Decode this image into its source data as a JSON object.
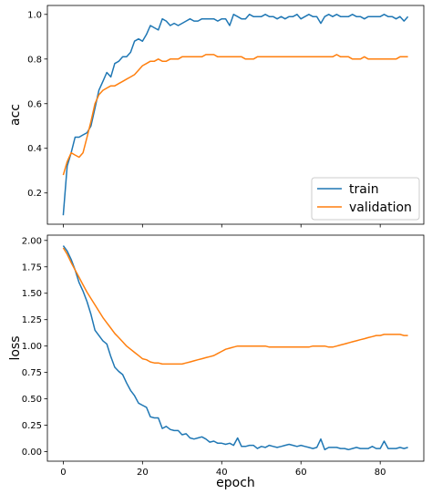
{
  "chart_data": [
    {
      "type": "line",
      "ylabel": "acc",
      "xlabel": "",
      "xlim": [
        -4,
        91
      ],
      "ylim": [
        0.06,
        1.04
      ],
      "xticks": [
        0,
        20,
        40,
        60,
        80
      ],
      "yticks": [
        0.2,
        0.4,
        0.6,
        0.8,
        1.0
      ],
      "ytick_format": 1,
      "legend": {
        "placement": "lower-right",
        "entries": [
          "train",
          "validation"
        ]
      },
      "grid": false,
      "series": [
        {
          "name": "train",
          "color": "#1f77b4",
          "x": [
            0,
            1,
            2,
            3,
            4,
            5,
            6,
            7,
            8,
            9,
            10,
            11,
            12,
            13,
            14,
            15,
            16,
            17,
            18,
            19,
            20,
            21,
            22,
            23,
            24,
            25,
            26,
            27,
            28,
            29,
            30,
            31,
            32,
            33,
            34,
            35,
            36,
            37,
            38,
            39,
            40,
            41,
            42,
            43,
            44,
            45,
            46,
            47,
            48,
            49,
            50,
            51,
            52,
            53,
            54,
            55,
            56,
            57,
            58,
            59,
            60,
            61,
            62,
            63,
            64,
            65,
            66,
            67,
            68,
            69,
            70,
            71,
            72,
            73,
            74,
            75,
            76,
            77,
            78,
            79,
            80,
            81,
            82,
            83,
            84,
            85,
            86,
            87
          ],
          "values": [
            0.1,
            0.32,
            0.38,
            0.45,
            0.45,
            0.46,
            0.47,
            0.5,
            0.58,
            0.66,
            0.7,
            0.74,
            0.72,
            0.78,
            0.79,
            0.81,
            0.81,
            0.83,
            0.88,
            0.89,
            0.88,
            0.91,
            0.95,
            0.94,
            0.93,
            0.98,
            0.97,
            0.95,
            0.96,
            0.95,
            0.96,
            0.97,
            0.98,
            0.97,
            0.97,
            0.98,
            0.98,
            0.98,
            0.98,
            0.97,
            0.98,
            0.98,
            0.95,
            1.0,
            0.99,
            0.98,
            0.98,
            1.0,
            0.99,
            0.99,
            0.99,
            1.0,
            0.99,
            0.99,
            0.98,
            0.99,
            0.98,
            0.99,
            0.99,
            1.0,
            0.98,
            0.99,
            1.0,
            0.99,
            0.99,
            0.96,
            0.99,
            1.0,
            0.99,
            1.0,
            0.99,
            0.99,
            0.99,
            1.0,
            0.99,
            0.99,
            0.98,
            0.99,
            0.99,
            0.99,
            0.99,
            1.0,
            0.99,
            0.99,
            0.98,
            0.99,
            0.97,
            0.99
          ]
        },
        {
          "name": "validation",
          "color": "#ff7f0e",
          "x": [
            0,
            1,
            2,
            3,
            4,
            5,
            6,
            7,
            8,
            9,
            10,
            11,
            12,
            13,
            14,
            15,
            16,
            17,
            18,
            19,
            20,
            21,
            22,
            23,
            24,
            25,
            26,
            27,
            28,
            29,
            30,
            31,
            32,
            33,
            34,
            35,
            36,
            37,
            38,
            39,
            40,
            41,
            42,
            43,
            44,
            45,
            46,
            47,
            48,
            49,
            50,
            51,
            52,
            53,
            54,
            55,
            56,
            57,
            58,
            59,
            60,
            61,
            62,
            63,
            64,
            65,
            66,
            67,
            68,
            69,
            70,
            71,
            72,
            73,
            74,
            75,
            76,
            77,
            78,
            79,
            80,
            81,
            82,
            83,
            84,
            85,
            86,
            87
          ],
          "values": [
            0.28,
            0.34,
            0.38,
            0.37,
            0.36,
            0.38,
            0.45,
            0.52,
            0.6,
            0.64,
            0.66,
            0.67,
            0.68,
            0.68,
            0.69,
            0.7,
            0.71,
            0.72,
            0.73,
            0.75,
            0.77,
            0.78,
            0.79,
            0.79,
            0.8,
            0.79,
            0.79,
            0.8,
            0.8,
            0.8,
            0.81,
            0.81,
            0.81,
            0.81,
            0.81,
            0.81,
            0.82,
            0.82,
            0.82,
            0.81,
            0.81,
            0.81,
            0.81,
            0.81,
            0.81,
            0.81,
            0.8,
            0.8,
            0.8,
            0.81,
            0.81,
            0.81,
            0.81,
            0.81,
            0.81,
            0.81,
            0.81,
            0.81,
            0.81,
            0.81,
            0.81,
            0.81,
            0.81,
            0.81,
            0.81,
            0.81,
            0.81,
            0.81,
            0.81,
            0.82,
            0.81,
            0.81,
            0.81,
            0.8,
            0.8,
            0.8,
            0.81,
            0.8,
            0.8,
            0.8,
            0.8,
            0.8,
            0.8,
            0.8,
            0.8,
            0.81,
            0.81,
            0.81
          ]
        }
      ]
    },
    {
      "type": "line",
      "ylabel": "loss",
      "xlabel": "epoch",
      "xlim": [
        -4,
        91
      ],
      "ylim": [
        -0.09,
        2.05
      ],
      "xticks": [
        0,
        20,
        40,
        60,
        80
      ],
      "yticks": [
        0.0,
        0.25,
        0.5,
        0.75,
        1.0,
        1.25,
        1.5,
        1.75,
        2.0
      ],
      "ytick_format": 2,
      "grid": false,
      "series": [
        {
          "name": "train",
          "color": "#1f77b4",
          "x": [
            0,
            1,
            2,
            3,
            4,
            5,
            6,
            7,
            8,
            9,
            10,
            11,
            12,
            13,
            14,
            15,
            16,
            17,
            18,
            19,
            20,
            21,
            22,
            23,
            24,
            25,
            26,
            27,
            28,
            29,
            30,
            31,
            32,
            33,
            34,
            35,
            36,
            37,
            38,
            39,
            40,
            41,
            42,
            43,
            44,
            45,
            46,
            47,
            48,
            49,
            50,
            51,
            52,
            53,
            54,
            55,
            56,
            57,
            58,
            59,
            60,
            61,
            62,
            63,
            64,
            65,
            66,
            67,
            68,
            69,
            70,
            71,
            72,
            73,
            74,
            75,
            76,
            77,
            78,
            79,
            80,
            81,
            82,
            83,
            84,
            85,
            86,
            87
          ],
          "values": [
            1.95,
            1.9,
            1.82,
            1.72,
            1.6,
            1.52,
            1.42,
            1.3,
            1.15,
            1.1,
            1.05,
            1.02,
            0.9,
            0.8,
            0.76,
            0.73,
            0.65,
            0.58,
            0.53,
            0.46,
            0.44,
            0.42,
            0.33,
            0.32,
            0.32,
            0.22,
            0.24,
            0.21,
            0.2,
            0.2,
            0.16,
            0.17,
            0.13,
            0.12,
            0.13,
            0.14,
            0.12,
            0.09,
            0.1,
            0.08,
            0.08,
            0.07,
            0.08,
            0.06,
            0.13,
            0.05,
            0.05,
            0.06,
            0.06,
            0.03,
            0.05,
            0.04,
            0.06,
            0.05,
            0.04,
            0.05,
            0.06,
            0.07,
            0.06,
            0.05,
            0.06,
            0.05,
            0.04,
            0.03,
            0.04,
            0.12,
            0.02,
            0.04,
            0.04,
            0.04,
            0.03,
            0.03,
            0.02,
            0.03,
            0.04,
            0.03,
            0.03,
            0.03,
            0.05,
            0.03,
            0.03,
            0.1,
            0.03,
            0.03,
            0.03,
            0.04,
            0.03,
            0.04
          ]
        },
        {
          "name": "validation",
          "color": "#ff7f0e",
          "x": [
            0,
            1,
            2,
            3,
            4,
            5,
            6,
            7,
            8,
            9,
            10,
            11,
            12,
            13,
            14,
            15,
            16,
            17,
            18,
            19,
            20,
            21,
            22,
            23,
            24,
            25,
            26,
            27,
            28,
            29,
            30,
            31,
            32,
            33,
            34,
            35,
            36,
            37,
            38,
            39,
            40,
            41,
            42,
            43,
            44,
            45,
            46,
            47,
            48,
            49,
            50,
            51,
            52,
            53,
            54,
            55,
            56,
            57,
            58,
            59,
            60,
            61,
            62,
            63,
            64,
            65,
            66,
            67,
            68,
            69,
            70,
            71,
            72,
            73,
            74,
            75,
            76,
            77,
            78,
            79,
            80,
            81,
            82,
            83,
            84,
            85,
            86,
            87
          ],
          "values": [
            1.93,
            1.87,
            1.79,
            1.72,
            1.65,
            1.58,
            1.51,
            1.45,
            1.39,
            1.33,
            1.27,
            1.22,
            1.17,
            1.12,
            1.08,
            1.04,
            1.0,
            0.97,
            0.94,
            0.91,
            0.88,
            0.87,
            0.85,
            0.84,
            0.84,
            0.83,
            0.83,
            0.83,
            0.83,
            0.83,
            0.83,
            0.84,
            0.85,
            0.86,
            0.87,
            0.88,
            0.89,
            0.9,
            0.91,
            0.93,
            0.95,
            0.97,
            0.98,
            0.99,
            1.0,
            1.0,
            1.0,
            1.0,
            1.0,
            1.0,
            1.0,
            1.0,
            0.99,
            0.99,
            0.99,
            0.99,
            0.99,
            0.99,
            0.99,
            0.99,
            0.99,
            0.99,
            0.99,
            1.0,
            1.0,
            1.0,
            1.0,
            0.99,
            0.99,
            1.0,
            1.01,
            1.02,
            1.03,
            1.04,
            1.05,
            1.06,
            1.07,
            1.08,
            1.09,
            1.1,
            1.1,
            1.11,
            1.11,
            1.11,
            1.11,
            1.11,
            1.1,
            1.1
          ]
        }
      ]
    }
  ]
}
